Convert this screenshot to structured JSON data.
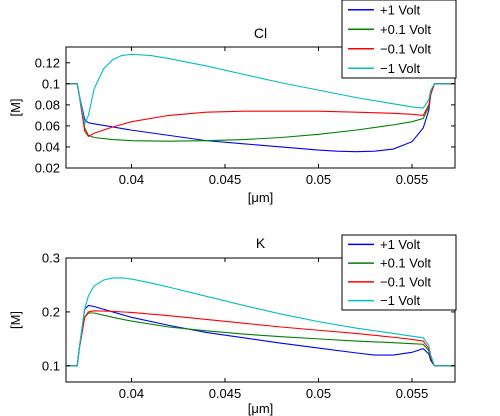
{
  "chart_data": [
    {
      "type": "line",
      "title": "Cl",
      "xlabel": "[μm]",
      "ylabel": "[M]",
      "xlim": [
        0.0365,
        0.0573
      ],
      "ylim": [
        0.02,
        0.135
      ],
      "xticks": [
        0.04,
        0.045,
        0.05,
        0.055
      ],
      "xtick_labels": [
        "0.04",
        "0.045",
        "0.05",
        "0.055"
      ],
      "yticks": [
        0.02,
        0.04,
        0.06,
        0.08,
        0.1,
        0.12
      ],
      "ytick_labels": [
        "0.02",
        "0.04",
        "0.06",
        "0.08",
        "0.1",
        "0.12"
      ],
      "legend_position": "top-right (outside above axes)",
      "series": [
        {
          "name": "+1 Volt",
          "color": "#0000ff",
          "x": [
            0.0365,
            0.0371,
            0.0372,
            0.0375,
            0.0377,
            0.038,
            0.039,
            0.04,
            0.042,
            0.044,
            0.046,
            0.048,
            0.05,
            0.051,
            0.052,
            0.053,
            0.054,
            0.055,
            0.0556,
            0.0559,
            0.056,
            0.0562,
            0.0573
          ],
          "y": [
            0.1,
            0.1,
            0.09,
            0.066,
            0.063,
            0.062,
            0.059,
            0.056,
            0.051,
            0.046,
            0.043,
            0.04,
            0.037,
            0.036,
            0.0355,
            0.036,
            0.038,
            0.045,
            0.058,
            0.075,
            0.09,
            0.1,
            0.1
          ]
        },
        {
          "name": "+0.1 Volt",
          "color": "#008000",
          "x": [
            0.0365,
            0.0371,
            0.0372,
            0.0375,
            0.0377,
            0.038,
            0.039,
            0.04,
            0.042,
            0.044,
            0.046,
            0.048,
            0.05,
            0.052,
            0.054,
            0.055,
            0.0556,
            0.0559,
            0.056,
            0.0562,
            0.0573
          ],
          "y": [
            0.1,
            0.1,
            0.09,
            0.058,
            0.051,
            0.049,
            0.047,
            0.046,
            0.0455,
            0.046,
            0.047,
            0.049,
            0.052,
            0.056,
            0.061,
            0.064,
            0.067,
            0.078,
            0.09,
            0.1,
            0.1
          ]
        },
        {
          "name": "−0.1 Volt",
          "color": "#ff0000",
          "x": [
            0.0365,
            0.0371,
            0.0372,
            0.0375,
            0.0377,
            0.038,
            0.039,
            0.04,
            0.042,
            0.044,
            0.046,
            0.048,
            0.05,
            0.052,
            0.054,
            0.055,
            0.0556,
            0.0559,
            0.056,
            0.0562,
            0.0573
          ],
          "y": [
            0.1,
            0.1,
            0.09,
            0.055,
            0.05,
            0.053,
            0.059,
            0.064,
            0.07,
            0.073,
            0.074,
            0.074,
            0.074,
            0.073,
            0.072,
            0.071,
            0.07,
            0.08,
            0.09,
            0.1,
            0.1
          ]
        },
        {
          "name": "−1 Volt",
          "color": "#00bfbf",
          "x": [
            0.0365,
            0.0371,
            0.0372,
            0.0375,
            0.0377,
            0.038,
            0.0385,
            0.039,
            0.0395,
            0.04,
            0.041,
            0.042,
            0.044,
            0.046,
            0.048,
            0.05,
            0.052,
            0.054,
            0.055,
            0.0556,
            0.0559,
            0.056,
            0.0562,
            0.0573
          ],
          "y": [
            0.1,
            0.1,
            0.09,
            0.062,
            0.07,
            0.095,
            0.114,
            0.123,
            0.127,
            0.128,
            0.127,
            0.124,
            0.117,
            0.109,
            0.101,
            0.094,
            0.087,
            0.081,
            0.078,
            0.077,
            0.085,
            0.094,
            0.1,
            0.1
          ]
        }
      ]
    },
    {
      "type": "line",
      "title": "K",
      "xlabel": "[μm]",
      "ylabel": "[M]",
      "xlim": [
        0.0365,
        0.0573
      ],
      "ylim": [
        0.07,
        0.3
      ],
      "xticks": [
        0.04,
        0.045,
        0.05,
        0.055
      ],
      "xtick_labels": [
        "0.04",
        "0.045",
        "0.05",
        "0.055"
      ],
      "yticks": [
        0.1,
        0.2,
        0.3
      ],
      "ytick_labels": [
        "0.1",
        "0.2",
        "0.3"
      ],
      "legend_position": "top-right",
      "series": [
        {
          "name": "+1 Volt",
          "color": "#0000ff",
          "x": [
            0.0365,
            0.0371,
            0.0372,
            0.0375,
            0.0377,
            0.038,
            0.039,
            0.04,
            0.042,
            0.044,
            0.046,
            0.048,
            0.05,
            0.052,
            0.053,
            0.054,
            0.055,
            0.0556,
            0.0559,
            0.056,
            0.0562,
            0.0573
          ],
          "y": [
            0.1,
            0.1,
            0.13,
            0.205,
            0.212,
            0.21,
            0.2,
            0.19,
            0.175,
            0.162,
            0.152,
            0.142,
            0.133,
            0.124,
            0.12,
            0.12,
            0.125,
            0.132,
            0.122,
            0.11,
            0.1,
            0.1
          ]
        },
        {
          "name": "+0.1 Volt",
          "color": "#008000",
          "x": [
            0.0365,
            0.0371,
            0.0372,
            0.0375,
            0.0377,
            0.038,
            0.039,
            0.04,
            0.042,
            0.044,
            0.046,
            0.048,
            0.05,
            0.052,
            0.054,
            0.055,
            0.0556,
            0.0559,
            0.056,
            0.0562,
            0.0573
          ],
          "y": [
            0.1,
            0.1,
            0.13,
            0.19,
            0.198,
            0.198,
            0.19,
            0.183,
            0.172,
            0.165,
            0.159,
            0.154,
            0.15,
            0.146,
            0.143,
            0.141,
            0.14,
            0.128,
            0.114,
            0.1,
            0.1
          ]
        },
        {
          "name": "−0.1 Volt",
          "color": "#ff0000",
          "x": [
            0.0365,
            0.0371,
            0.0372,
            0.0375,
            0.0377,
            0.038,
            0.039,
            0.04,
            0.042,
            0.044,
            0.046,
            0.048,
            0.05,
            0.052,
            0.054,
            0.055,
            0.0556,
            0.0559,
            0.056,
            0.0562,
            0.0573
          ],
          "y": [
            0.1,
            0.1,
            0.13,
            0.19,
            0.2,
            0.202,
            0.201,
            0.199,
            0.193,
            0.186,
            0.179,
            0.172,
            0.166,
            0.16,
            0.153,
            0.149,
            0.146,
            0.132,
            0.116,
            0.1,
            0.1
          ]
        },
        {
          "name": "−1 Volt",
          "color": "#00bfbf",
          "x": [
            0.0365,
            0.0371,
            0.0372,
            0.0375,
            0.0377,
            0.038,
            0.0385,
            0.039,
            0.0395,
            0.04,
            0.041,
            0.042,
            0.044,
            0.046,
            0.048,
            0.05,
            0.052,
            0.054,
            0.055,
            0.0556,
            0.0559,
            0.056,
            0.0562,
            0.0573
          ],
          "y": [
            0.1,
            0.1,
            0.13,
            0.205,
            0.23,
            0.248,
            0.259,
            0.263,
            0.263,
            0.261,
            0.254,
            0.246,
            0.229,
            0.212,
            0.196,
            0.182,
            0.17,
            0.16,
            0.155,
            0.152,
            0.138,
            0.12,
            0.1,
            0.1
          ]
        }
      ]
    }
  ]
}
